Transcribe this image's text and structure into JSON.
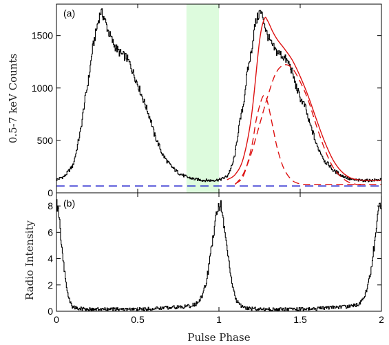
{
  "chart_data": [
    {
      "type": "line",
      "panel_label": "(a)",
      "ylabel": "0.5-7 keV Counts",
      "xlim": [
        0,
        2
      ],
      "ylim": [
        0,
        1800
      ],
      "yticks": [
        0,
        500,
        1000,
        1500
      ],
      "ytick_labels": [
        "0",
        "500",
        "1000",
        "1500"
      ],
      "shaded_region": {
        "x0": 0.8,
        "x1": 1.0,
        "color": "#ddfbdd"
      },
      "series": [
        {
          "style": "step",
          "color": "#000000",
          "x": [
            0.0,
            0.05,
            0.1,
            0.12,
            0.15,
            0.17,
            0.2,
            0.22,
            0.25,
            0.27,
            0.29,
            0.32,
            0.35,
            0.38,
            0.4,
            0.43,
            0.45,
            0.47,
            0.5,
            0.53,
            0.55,
            0.58,
            0.6,
            0.63,
            0.65,
            0.68,
            0.7,
            0.73,
            0.75,
            0.78,
            0.8,
            0.85,
            0.9,
            0.95,
            1.0,
            1.02,
            1.05,
            1.08,
            1.1,
            1.12,
            1.15,
            1.17,
            1.2,
            1.22,
            1.25,
            1.27,
            1.29,
            1.32,
            1.35,
            1.38,
            1.4,
            1.43,
            1.45,
            1.47,
            1.5,
            1.53,
            1.55,
            1.58,
            1.6,
            1.63,
            1.65,
            1.68,
            1.7,
            1.73,
            1.75,
            1.78,
            1.8,
            1.85,
            1.9,
            1.95,
            2.0
          ],
          "y": [
            125,
            160,
            260,
            390,
            620,
            850,
            1120,
            1370,
            1600,
            1730,
            1680,
            1530,
            1420,
            1350,
            1320,
            1290,
            1230,
            1150,
            1030,
            900,
            820,
            690,
            560,
            450,
            370,
            300,
            260,
            215,
            190,
            165,
            150,
            130,
            120,
            118,
            125,
            135,
            160,
            260,
            390,
            620,
            850,
            1120,
            1370,
            1600,
            1730,
            1680,
            1530,
            1420,
            1350,
            1320,
            1290,
            1230,
            1150,
            1030,
            900,
            820,
            690,
            560,
            450,
            370,
            300,
            260,
            215,
            190,
            165,
            150,
            130,
            120,
            118,
            120,
            125
          ]
        },
        {
          "style": "line",
          "color": "#dd1111",
          "dash": "none",
          "x": [
            1.05,
            1.1,
            1.15,
            1.2,
            1.25,
            1.28,
            1.3,
            1.33,
            1.36,
            1.4,
            1.45,
            1.5,
            1.55,
            1.6,
            1.65,
            1.7,
            1.75,
            1.8,
            1.85,
            1.9,
            2.0
          ],
          "y": [
            125,
            175,
            330,
            730,
            1450,
            1660,
            1640,
            1540,
            1460,
            1380,
            1270,
            1110,
            920,
            700,
            490,
            320,
            210,
            150,
            125,
            120,
            120
          ]
        },
        {
          "style": "line",
          "color": "#dd1111",
          "dash": "10,6",
          "x": [
            1.1,
            1.15,
            1.2,
            1.25,
            1.3,
            1.35,
            1.4,
            1.45,
            1.5,
            1.55,
            1.6,
            1.65,
            1.7,
            1.75,
            1.8,
            1.85,
            1.9
          ],
          "y": [
            80,
            180,
            380,
            650,
            920,
            1140,
            1220,
            1190,
            1060,
            880,
            640,
            420,
            250,
            155,
            100,
            80,
            75
          ]
        },
        {
          "style": "line",
          "color": "#dd1111",
          "dash": "10,6",
          "x": [
            1.1,
            1.15,
            1.2,
            1.23,
            1.26,
            1.28,
            1.3,
            1.33,
            1.36,
            1.4,
            1.45,
            1.5,
            1.55,
            1.6,
            1.7,
            1.8,
            1.9,
            2.0
          ],
          "y": [
            85,
            160,
            430,
            700,
            880,
            930,
            860,
            640,
            420,
            230,
            120,
            85,
            80,
            80,
            80,
            80,
            80,
            80
          ]
        },
        {
          "style": "line",
          "color": "#1a1acc",
          "dash": "12,7",
          "x": [
            0,
            2
          ],
          "y": [
            65,
            65
          ]
        }
      ]
    },
    {
      "type": "line",
      "panel_label": "(b)",
      "ylabel": "Radio Intensity",
      "xlabel": "Pulse Phase",
      "xlim": [
        0,
        2
      ],
      "ylim": [
        0,
        9
      ],
      "xticks": [
        0,
        0.5,
        1,
        1.5,
        2
      ],
      "xtick_labels": [
        "0",
        "0.5",
        "1",
        "1.5",
        "2"
      ],
      "yticks": [
        0,
        2,
        4,
        6,
        8
      ],
      "ytick_labels": [
        "0",
        "2",
        "4",
        "6",
        "8"
      ],
      "series": [
        {
          "style": "step",
          "color": "#000000",
          "x": [
            0.0,
            0.01,
            0.02,
            0.03,
            0.05,
            0.07,
            0.09,
            0.1,
            0.15,
            0.2,
            0.3,
            0.4,
            0.5,
            0.6,
            0.7,
            0.8,
            0.85,
            0.88,
            0.9,
            0.92,
            0.94,
            0.96,
            0.98,
            1.0,
            1.02,
            1.04,
            1.06,
            1.08,
            1.1,
            1.12,
            1.15,
            1.2,
            1.3,
            1.4,
            1.5,
            1.6,
            1.7,
            1.8,
            1.85,
            1.88,
            1.9,
            1.92,
            1.94,
            1.96,
            1.98,
            2.0
          ],
          "y": [
            8.2,
            7.6,
            6.5,
            5.0,
            2.8,
            1.2,
            0.5,
            0.3,
            0.2,
            0.15,
            0.15,
            0.15,
            0.15,
            0.2,
            0.3,
            0.35,
            0.5,
            0.8,
            1.3,
            2.2,
            3.6,
            5.5,
            7.4,
            8.3,
            7.5,
            5.6,
            3.6,
            2.0,
            1.0,
            0.5,
            0.3,
            0.2,
            0.15,
            0.15,
            0.15,
            0.2,
            0.3,
            0.35,
            0.5,
            0.8,
            1.3,
            2.2,
            3.6,
            5.5,
            7.4,
            8.3
          ]
        }
      ]
    }
  ]
}
